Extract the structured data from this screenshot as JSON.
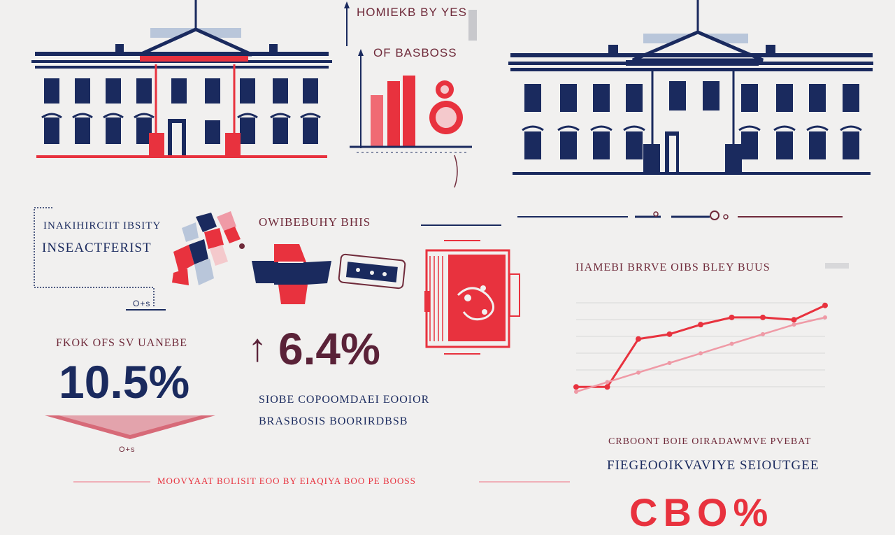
{
  "colors": {
    "navy": "#1a2a5e",
    "red": "#e8323e",
    "pink": "#ef9aa6",
    "maroon": "#6f2a3a",
    "background": "#f1f0ef"
  },
  "top_center": {
    "title": "HOMIEKB BY YES",
    "subtitle": "OF BASBOSS"
  },
  "left_box": {
    "line1": "INAKIHIRCIIT IBSITY",
    "line2": "INSEACTFERIST",
    "footnote": "O+s"
  },
  "stat_left": {
    "label": "FKOK OFS SV UANEBE",
    "value": "10.5%",
    "footnote": "O+s"
  },
  "center_section": {
    "heading": "OWIBEBUHY BHIS",
    "value": "6.4%",
    "arrow": "↑",
    "desc1": "SIOBE COPOOMDAEI EOOIOR",
    "desc2": "BRASBOSIS BOORIRDBSB"
  },
  "right_section": {
    "chart_heading": "IIAMEBI BRRVE OIBS BLEY BUUS",
    "caption1": "CRBOONT BOIE OIRADAWMVE PVEBAT",
    "caption2": "FIEGEOOIKVAVIYE SEIOUTGEE",
    "partial_value": "CBO%"
  },
  "bottom_banner": {
    "text": "MOOVYAAT BOLISIT EOO BY EIAQIYA BOO PE BOOSS"
  },
  "chart_data": {
    "type": "line",
    "title": "IIAMEBI BRRVE OIBS BLEY BUUS",
    "x": [
      1,
      2,
      3,
      4,
      5,
      6,
      7,
      8,
      9
    ],
    "series": [
      {
        "values": [
          2,
          2,
          22,
          24,
          28,
          31,
          31,
          30,
          36
        ]
      },
      {
        "values": [
          0,
          4,
          8,
          12,
          16,
          20,
          24,
          28,
          31
        ]
      }
    ],
    "xlim": [
      1,
      9
    ],
    "ylim": [
      -2,
      40
    ],
    "grid": true
  }
}
